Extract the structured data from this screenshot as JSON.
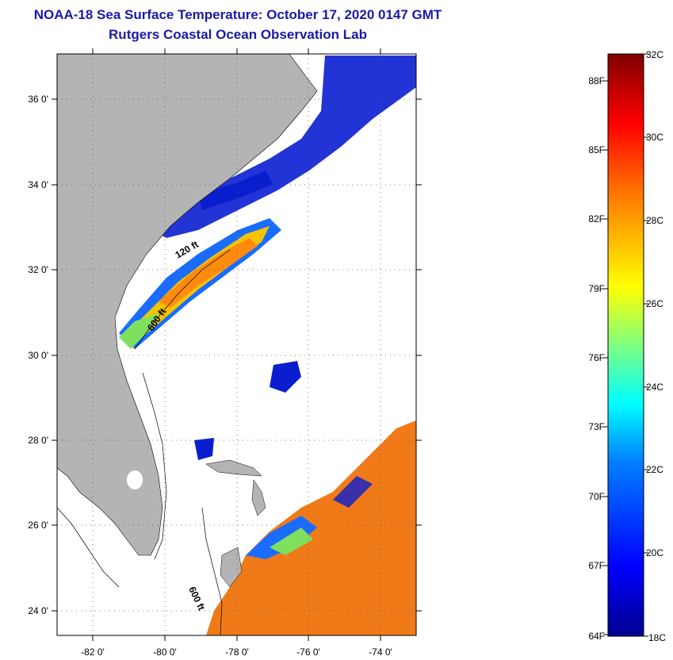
{
  "title": "NOAA-18 Sea Surface Temperature:  October 17, 2020 0147 GMT",
  "subtitle": "Rutgers Coastal Ocean Observation Lab",
  "map": {
    "lon_range": [
      -83,
      -73
    ],
    "lat_range": [
      23,
      37
    ],
    "lon_ticks": [
      "-82 0'",
      "-80 0'",
      "-78 0'",
      "-76 0'",
      "-74 0'"
    ],
    "lat_ticks": [
      "36 0'",
      "34 0'",
      "32 0'",
      "30 0'",
      "28 0'",
      "26 0'",
      "24 0'"
    ],
    "land_color": "#b4b4b4",
    "contour_labels": [
      "120 ft",
      "600 ft",
      "600 ft"
    ]
  },
  "colorbar": {
    "range_c": [
      18,
      32
    ],
    "celsius_labels": [
      "32C",
      "30C",
      "28C",
      "26C",
      "24C",
      "22C",
      "20C",
      "18C"
    ],
    "fahrenheit_labels": [
      "88F",
      "85F",
      "82F",
      "79F",
      "76F",
      "73F",
      "70F",
      "67F",
      "64F"
    ],
    "colors": [
      "#00008f",
      "#0000ff",
      "#0080ff",
      "#00ffff",
      "#80ff80",
      "#ffff00",
      "#ff8000",
      "#ff0000",
      "#800000"
    ]
  }
}
